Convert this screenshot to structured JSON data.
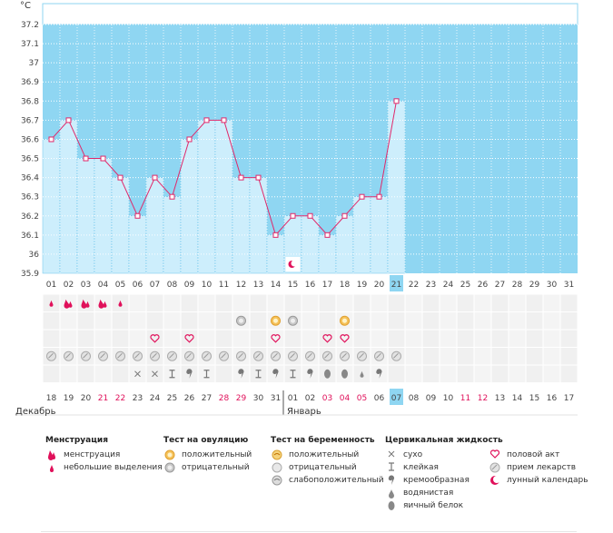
{
  "chart_data": {
    "type": "bar",
    "unit": "°C",
    "y_ticks": [
      "37.2",
      "37.1",
      "37",
      "36.9",
      "36.8",
      "36.7",
      "36.6",
      "36.5",
      "36.4",
      "36.3",
      "36.2",
      "36.1",
      "36",
      "35.9"
    ],
    "ylim": [
      35.9,
      37.3
    ],
    "cycle_days": [
      "01",
      "02",
      "03",
      "04",
      "05",
      "06",
      "07",
      "08",
      "09",
      "10",
      "11",
      "12",
      "13",
      "14",
      "15",
      "16",
      "17",
      "18",
      "19",
      "20",
      "21",
      "22",
      "23",
      "24",
      "25",
      "26",
      "27",
      "28",
      "29",
      "30",
      "31"
    ],
    "values": [
      36.6,
      36.7,
      36.5,
      36.5,
      36.4,
      36.2,
      36.4,
      36.3,
      36.6,
      36.7,
      36.7,
      36.4,
      36.4,
      36.1,
      36.2,
      36.2,
      36.1,
      36.2,
      36.3,
      36.3,
      36.8
    ],
    "highlight_day": "21",
    "calendar_dates": [
      "18",
      "19",
      "20",
      "21",
      "22",
      "23",
      "24",
      "25",
      "26",
      "27",
      "28",
      "29",
      "30",
      "31",
      "01",
      "02",
      "03",
      "04",
      "05",
      "06",
      "07",
      "08",
      "09",
      "10",
      "11",
      "12",
      "13",
      "14",
      "15",
      "16",
      "17"
    ],
    "red_dates_idx": [
      3,
      4,
      10,
      11,
      16,
      17,
      18,
      24,
      25
    ],
    "months": {
      "first": "Декабрь",
      "second": "Январь"
    },
    "rows": {
      "menstruation": [
        "small",
        "big",
        "big",
        "big",
        "small"
      ],
      "ovulation_test": {
        "12": "neg",
        "14": "pos",
        "15": "neg",
        "18": "pos"
      },
      "sex": [
        7,
        9,
        14,
        17,
        18
      ],
      "medication_days": 21,
      "cervical": {
        "6": "dry",
        "7": "dry",
        "8": "sticky",
        "9": "creamy",
        "10": "sticky",
        "12": "creamy",
        "13": "sticky",
        "14": "creamy",
        "15": "sticky",
        "16": "creamy",
        "17": "eggwhite",
        "18": "eggwhite",
        "19": "watery",
        "20": "creamy"
      }
    },
    "grid": true
  },
  "legend": {
    "menstruation": {
      "title": "Менструация",
      "items": [
        "менструация",
        "небольшие выделения"
      ]
    },
    "ovulation": {
      "title": "Тест на овуляцию",
      "items": [
        "положительный",
        "отрицательный"
      ]
    },
    "pregnancy": {
      "title": "Тест на беременность",
      "items": [
        "положительный",
        "отрицательный",
        "слабоположительный"
      ]
    },
    "cervical": {
      "title": "Цервикальная жидкость",
      "items": [
        "сухо",
        "клейкая",
        "кремообразная",
        "водянистая",
        "яичный белок"
      ]
    },
    "other": {
      "items": [
        "половой акт",
        "прием лекарств",
        "лунный календарь"
      ]
    }
  },
  "colors": {
    "plot_bg": "#8fd6f2",
    "bar": "#cdeefc",
    "bar_edge": "#6cc5ec",
    "line": "#e0286a",
    "red": "#e0105a",
    "highlight": "#8fd6f2"
  }
}
